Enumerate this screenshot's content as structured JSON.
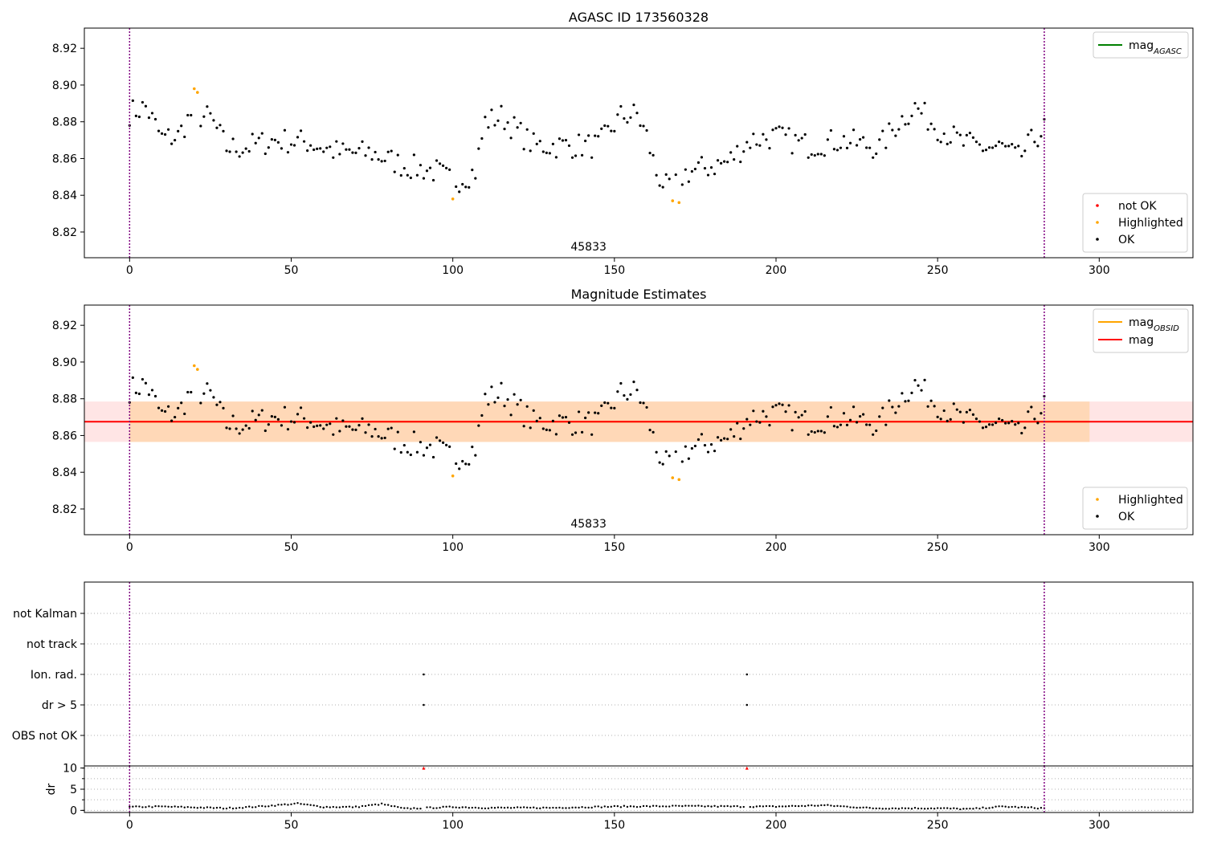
{
  "colors": {
    "ok": "#000000",
    "highlighted": "#ffa500",
    "not_ok": "#ff0000",
    "mag_agasc": "#008000",
    "mag_obsid": "#ffa500",
    "mag": "#ff0000",
    "obs_boundary": "#800080"
  },
  "chart_data": [
    {
      "type": "scatter",
      "title": "AGASC ID 173560328",
      "xlim": [
        -14,
        329
      ],
      "ylim": [
        8.806,
        8.931
      ],
      "xticks": [
        "0",
        "50",
        "100",
        "150",
        "200",
        "250",
        "300"
      ],
      "yticks": [
        "8.82",
        "8.84",
        "8.86",
        "8.88",
        "8.90",
        "8.92"
      ],
      "obs_boundaries": [
        0,
        283
      ],
      "obsid_label": "45833",
      "legend_lines": [
        {
          "label": "mag",
          "sub": "AGASC",
          "color": "#008000"
        }
      ],
      "legend_points": [
        {
          "label": "not OK",
          "color": "#ff0000"
        },
        {
          "label": "Highlighted",
          "color": "#ffa500"
        },
        {
          "label": "OK",
          "color": "#000000"
        }
      ],
      "legend_lines_pos": "upper right",
      "legend_points_pos": "lower right",
      "highlighted": [
        {
          "x": 20,
          "y": 8.898
        },
        {
          "x": 21,
          "y": 8.896
        },
        {
          "x": 100,
          "y": 8.838
        },
        {
          "x": 168,
          "y": 8.837
        },
        {
          "x": 170,
          "y": 8.836
        }
      ],
      "ok_trend_x": [
        0,
        5,
        10,
        15,
        19,
        25,
        30,
        35,
        45,
        55,
        65,
        75,
        85,
        95,
        100,
        107,
        110,
        115,
        120,
        125,
        135,
        145,
        152,
        157,
        160,
        163,
        167,
        172,
        178,
        185,
        192,
        200,
        210,
        220,
        232,
        238,
        243,
        250,
        258,
        265,
        270,
        275,
        280,
        283
      ],
      "ok_trend_y": [
        8.885,
        8.888,
        8.871,
        8.872,
        8.884,
        8.882,
        8.866,
        8.866,
        8.87,
        8.869,
        8.863,
        8.863,
        8.856,
        8.853,
        8.847,
        8.853,
        8.88,
        8.883,
        8.875,
        8.867,
        8.867,
        8.867,
        8.883,
        8.884,
        8.872,
        8.852,
        8.842,
        8.852,
        8.855,
        8.858,
        8.87,
        8.872,
        8.867,
        8.87,
        8.866,
        8.88,
        8.888,
        8.877,
        8.868,
        8.866,
        8.866,
        8.86,
        8.871,
        8.876
      ],
      "ok_jitter": 0.007,
      "ok_count": 284
    },
    {
      "type": "scatter",
      "title": "Magnitude Estimates",
      "xlim": [
        -14,
        329
      ],
      "ylim": [
        8.806,
        8.931
      ],
      "xticks": [
        "0",
        "50",
        "100",
        "150",
        "200",
        "250",
        "300"
      ],
      "yticks": [
        "8.82",
        "8.84",
        "8.86",
        "8.88",
        "8.90",
        "8.92"
      ],
      "obs_boundaries": [
        0,
        283
      ],
      "obsid_label": "45833",
      "mag": 8.8675,
      "mag_band": [
        8.8565,
        8.8785
      ],
      "obsid_band_x": [
        0,
        297
      ],
      "legend_lines": [
        {
          "label": "mag",
          "sub": "OBSID",
          "color": "#ffa500"
        },
        {
          "label": "mag",
          "sub": "",
          "color": "#ff0000"
        }
      ],
      "legend_points": [
        {
          "label": "Highlighted",
          "color": "#ffa500"
        },
        {
          "label": "OK",
          "color": "#000000"
        }
      ],
      "legend_lines_pos": "upper right",
      "legend_points_pos": "lower right"
    },
    {
      "type": "scatter",
      "title": "",
      "xlim": [
        -14,
        329
      ],
      "xticks": [
        "0",
        "50",
        "100",
        "150",
        "200",
        "250",
        "300"
      ],
      "flag_labels": [
        "not Kalman",
        "not track",
        "Ion. rad.",
        "dr > 5",
        "OBS not OK"
      ],
      "flag_points": [
        {
          "flag": "Ion. rad.",
          "x": 91
        },
        {
          "flag": "dr > 5",
          "x": 91
        },
        {
          "flag": "Ion. rad.",
          "x": 191
        },
        {
          "flag": "dr > 5",
          "x": 191
        }
      ],
      "obs_boundaries": [
        0,
        283
      ]
    },
    {
      "type": "scatter",
      "title": "",
      "ylabel": "dr",
      "xlim": [
        -14,
        329
      ],
      "ylim": [
        -0.5,
        10.5
      ],
      "yticks": [
        "0",
        "5",
        "10"
      ],
      "xticks": [
        "0",
        "50",
        "100",
        "150",
        "200",
        "250",
        "300"
      ],
      "capped_points": [
        {
          "x": 91,
          "y": 10
        },
        {
          "x": 191,
          "y": 10
        }
      ],
      "obs_boundaries": [
        0,
        283
      ],
      "dr_trend_x": [
        0,
        10,
        20,
        30,
        40,
        52,
        60,
        70,
        78,
        85,
        100,
        110,
        130,
        150,
        170,
        190,
        200,
        215,
        230,
        250,
        260,
        270,
        283
      ],
      "dr_trend_y": [
        0.8,
        0.9,
        0.7,
        0.5,
        0.9,
        1.6,
        0.8,
        0.8,
        1.5,
        0.4,
        0.8,
        0.6,
        0.6,
        0.9,
        1.0,
        0.9,
        0.9,
        1.2,
        0.5,
        0.5,
        0.3,
        0.9,
        0.5
      ]
    }
  ]
}
